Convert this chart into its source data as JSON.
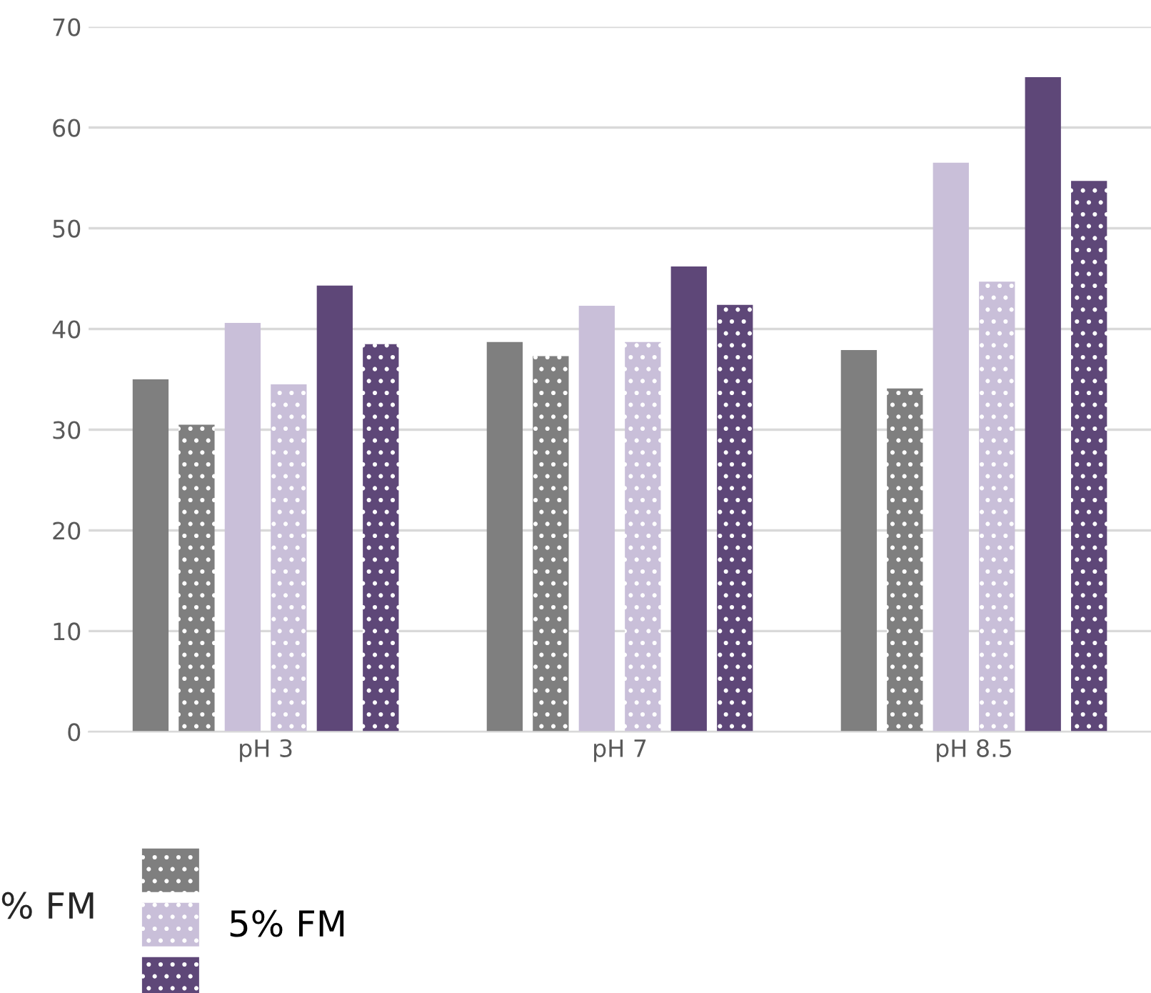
{
  "chart_data": {
    "type": "bar",
    "categories": [
      "pH 3",
      "pH 7",
      "pH 8.5"
    ],
    "series": [
      {
        "color": "#7f7f7f",
        "values": [
          35.0,
          38.7,
          37.9
        ]
      },
      {
        "color": "#7f7f7f",
        "values": [
          30.5,
          37.3,
          34.1
        ]
      },
      {
        "color": "#c9bfd9",
        "values": [
          40.6,
          42.3,
          56.5
        ]
      },
      {
        "name": "5% FM",
        "color": "#c9bfd9",
        "values": [
          34.5,
          38.7,
          44.7
        ]
      },
      {
        "color": "#5e4778",
        "values": [
          44.3,
          46.2,
          65.0
        ]
      },
      {
        "color": "#5e4778",
        "values": [
          38.5,
          42.4,
          54.7
        ]
      }
    ],
    "ylim": [
      0,
      70
    ],
    "yticks": [
      0,
      10,
      20,
      30,
      40,
      50,
      60,
      70
    ],
    "grid": "y",
    "legend": "bottom left",
    "annotations": [
      "% FM"
    ]
  }
}
